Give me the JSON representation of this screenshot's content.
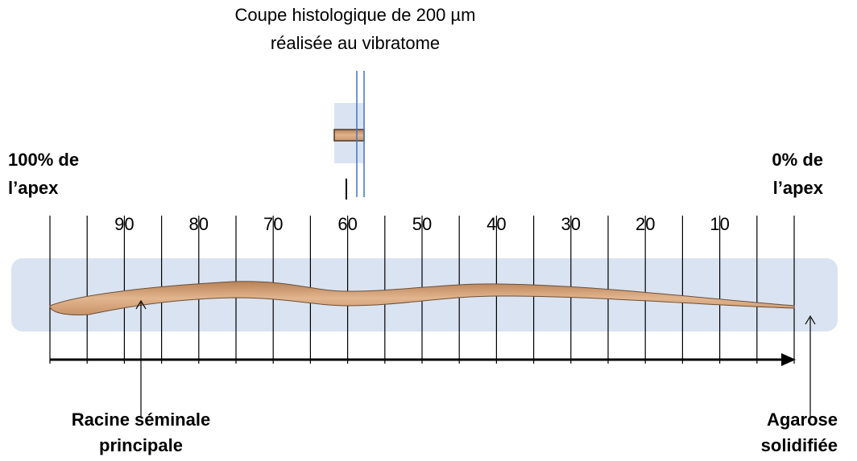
{
  "caption": [
    "Coupe histologique de 200 µm",
    "réalisée au vibratome"
  ],
  "left_label": [
    "100% de",
    "l’apex"
  ],
  "right_label": [
    "0% de",
    "l’apex"
  ],
  "scale_labels": [
    90,
    80,
    70,
    60,
    50,
    40,
    30,
    20,
    10
  ],
  "root_label": [
    "Racine séminale",
    "principale"
  ],
  "agarose_label": [
    "Agarose",
    "solidifiée"
  ]
}
